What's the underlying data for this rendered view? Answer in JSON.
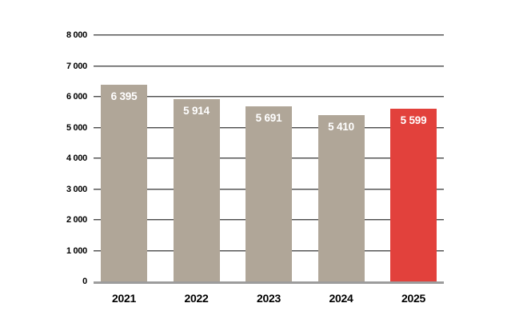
{
  "chart_data": {
    "type": "bar",
    "categories": [
      "2021",
      "2022",
      "2023",
      "2024",
      "2025"
    ],
    "values": [
      6395,
      5914,
      5691,
      5410,
      5599
    ],
    "value_labels": [
      "6 395",
      "5 914",
      "5 691",
      "5 410",
      "5 599"
    ],
    "bar_colors": [
      "#b0a698",
      "#b0a698",
      "#b0a698",
      "#b0a698",
      "#e2413c"
    ],
    "title": "",
    "xlabel": "",
    "ylabel": "",
    "ylim": [
      0,
      8000
    ],
    "ytick_step": 1000,
    "ytick_labels": [
      "0",
      "1 000",
      "2 000",
      "3 000",
      "4 000",
      "5 000",
      "6 000",
      "7 000",
      "8 000"
    ],
    "grid": true,
    "legend": false,
    "colors": {
      "default_bar": "#b0a698",
      "highlight_bar": "#e2413c",
      "gridline": "#4f4f4f",
      "baseline": "#9c9c9c",
      "value_label": "#ffffff",
      "axis_label": "#000000",
      "background": "#ffffff"
    }
  }
}
